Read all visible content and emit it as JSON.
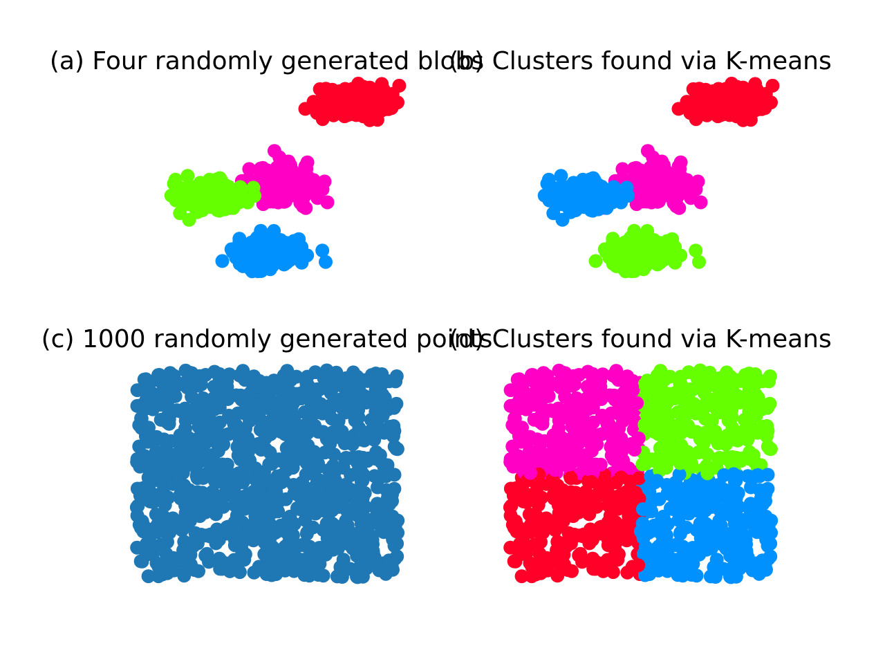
{
  "chart_data": [
    {
      "type": "scatter",
      "title": "(a) Four randomly generated blobs",
      "axes_visible": false,
      "xlim": [
        -11,
        11
      ],
      "ylim": [
        -10,
        10
      ],
      "series": [
        {
          "color": "#ff0028",
          "center": [
            6,
            8
          ],
          "spread": [
            2.2,
            1.1
          ],
          "count": 250
        },
        {
          "color": "#ff00c4",
          "center": [
            1,
            1
          ],
          "spread": [
            2.0,
            1.4
          ],
          "count": 250
        },
        {
          "color": "#66ff00",
          "center": [
            -4,
            0
          ],
          "spread": [
            1.8,
            1.1
          ],
          "count": 250
        },
        {
          "color": "#0091ff",
          "center": [
            0,
            -5
          ],
          "spread": [
            2.1,
            1.2
          ],
          "count": 250
        }
      ]
    },
    {
      "type": "scatter",
      "title": "(b) Clusters found via K-means",
      "axes_visible": false,
      "xlim": [
        -11,
        11
      ],
      "ylim": [
        -10,
        10
      ],
      "series": [
        {
          "color": "#ff0028",
          "center": [
            6,
            8
          ],
          "spread": [
            2.2,
            1.1
          ],
          "count": 250
        },
        {
          "color": "#ff00c4",
          "center": [
            1,
            1
          ],
          "spread": [
            2.0,
            1.4
          ],
          "count": 250
        },
        {
          "color": "#0091ff",
          "center": [
            -4,
            0
          ],
          "spread": [
            1.8,
            1.1
          ],
          "count": 250
        },
        {
          "color": "#66ff00",
          "center": [
            0,
            -5
          ],
          "spread": [
            2.1,
            1.2
          ],
          "count": 250
        }
      ]
    },
    {
      "type": "scatter",
      "title": "(c) 1000 randomly generated points",
      "axes_visible": false,
      "xlim": [
        -0.1,
        1.1
      ],
      "ylim": [
        -0.05,
        1.05
      ],
      "series": [
        {
          "color": "#1f77b4",
          "distribution": "uniform",
          "count": 1000
        }
      ]
    },
    {
      "type": "scatter",
      "title": "(d) Clusters found via K-means",
      "axes_visible": false,
      "xlim": [
        -0.1,
        1.1
      ],
      "ylim": [
        -0.05,
        1.05
      ],
      "series": [
        {
          "color": "#ff00c4",
          "region": "top-left",
          "count": 250
        },
        {
          "color": "#66ff00",
          "region": "top-right",
          "count": 250
        },
        {
          "color": "#ff0028",
          "region": "bottom-left",
          "count": 250
        },
        {
          "color": "#0091ff",
          "region": "bottom-right",
          "count": 250
        }
      ]
    }
  ]
}
